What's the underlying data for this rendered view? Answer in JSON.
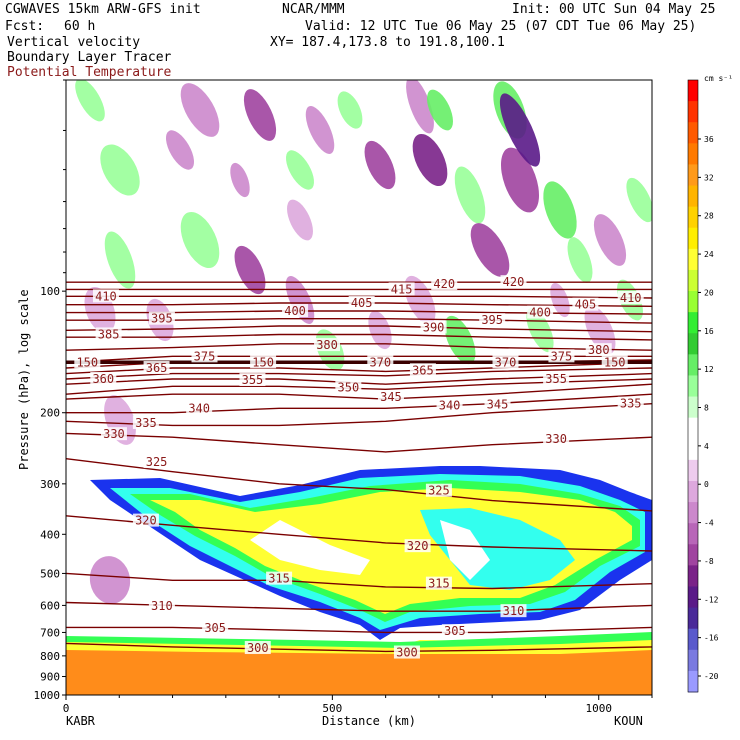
{
  "header": {
    "model": "CGWAVES 15km ARW-GFS init",
    "org": "NCAR/MMM",
    "init": "Init: 00 UTC Sun 04 May 25",
    "fcst_label": "Fcst:",
    "fcst_value": "60 h",
    "valid": "Valid: 12 UTC Tue 06 May 25 (07 CDT Tue 06 May 25)",
    "field1": "Vertical velocity",
    "field2": "Boundary Layer Tracer",
    "field3": "Potential Temperature",
    "xy": "XY= 187.4,173.8 to 191.8,100.1"
  },
  "colors": {
    "theta_contour": "#7a0000",
    "theta_label": "#8b1a1a",
    "tracer_orange": "#ff8c1a",
    "tracer_yellow": "#ffff33",
    "tracer_green": "#33ff55",
    "tracer_cyan": "#33ffee",
    "tracer_blue": "#1a33ee",
    "updraft_green": "#55ee55",
    "downdraft_purple": "#8a2a9a"
  },
  "chart_data": {
    "type": "heatmap",
    "xlabel": "Distance (km)",
    "ylabel": "Pressure (hPa), log scale",
    "x_ticks": [
      "0",
      "500",
      "1000"
    ],
    "xlim": [
      0,
      1100
    ],
    "ylim": [
      1000,
      30
    ],
    "y_scale": "log",
    "y_ticks": [
      "100",
      "200",
      "300",
      "400",
      "500",
      "600",
      "700",
      "800",
      "900",
      "1000"
    ],
    "y_tick_values": [
      100,
      200,
      300,
      400,
      500,
      600,
      700,
      800,
      900,
      1000
    ],
    "endpoints": {
      "left": "KABR",
      "right": "KOUN"
    },
    "colorbar": {
      "unit": "cm s⁻¹",
      "labels": [
        "36",
        "32",
        "28",
        "24",
        "20",
        "16",
        "12",
        "8",
        "4",
        "0",
        "-4",
        "-8",
        "-12",
        "-16",
        "-20"
      ],
      "colors": [
        "#ff0000",
        "#ff3300",
        "#ff5a00",
        "#ff7a00",
        "#ff9a1a",
        "#ffb400",
        "#ffd200",
        "#ffee00",
        "#ffff33",
        "#ccff33",
        "#99ff33",
        "#33ee33",
        "#33cc33",
        "#66ee66",
        "#99ff99",
        "#ccffcc",
        "#ffffff",
        "#ffffff",
        "#eeccee",
        "#dda8dd",
        "#cc88cc",
        "#b866b8",
        "#a044a0",
        "#7a2288",
        "#5a1a88",
        "#4a2a99",
        "#5a5acc",
        "#7a7ae0",
        "#9a9aff"
      ]
    },
    "theta_contours": [
      {
        "label": "300",
        "values": [
          [
            0,
            745
          ],
          [
            200,
            760
          ],
          [
            400,
            770
          ],
          [
            600,
            780
          ],
          [
            800,
            775
          ],
          [
            1100,
            760
          ]
        ]
      },
      {
        "label": "305",
        "values": [
          [
            0,
            680
          ],
          [
            200,
            680
          ],
          [
            400,
            690
          ],
          [
            600,
            700
          ],
          [
            800,
            700
          ],
          [
            1100,
            680
          ]
        ]
      },
      {
        "label": "310",
        "values": [
          [
            0,
            590
          ],
          [
            200,
            600
          ],
          [
            400,
            610
          ],
          [
            600,
            620
          ],
          [
            800,
            620
          ],
          [
            1100,
            600
          ]
        ]
      },
      {
        "label": "315",
        "values": [
          [
            0,
            500
          ],
          [
            200,
            520
          ],
          [
            400,
            520
          ],
          [
            600,
            540
          ],
          [
            800,
            545
          ],
          [
            1100,
            530
          ]
        ]
      },
      {
        "label": "320",
        "values": [
          [
            0,
            360
          ],
          [
            200,
            380
          ],
          [
            400,
            400
          ],
          [
            600,
            420
          ],
          [
            800,
            430
          ],
          [
            1100,
            440
          ]
        ]
      },
      {
        "label": "325",
        "values": [
          [
            0,
            260
          ],
          [
            200,
            280
          ],
          [
            400,
            300
          ],
          [
            600,
            310
          ],
          [
            800,
            330
          ],
          [
            1100,
            350
          ]
        ]
      },
      {
        "label": "330",
        "values": [
          [
            0,
            225
          ],
          [
            200,
            230
          ],
          [
            400,
            240
          ],
          [
            600,
            250
          ],
          [
            800,
            240
          ],
          [
            1100,
            230
          ]
        ]
      },
      {
        "label": "335",
        "values": [
          [
            0,
            210
          ],
          [
            200,
            215
          ],
          [
            400,
            215
          ],
          [
            600,
            210
          ],
          [
            800,
            200
          ],
          [
            1100,
            190
          ]
        ]
      },
      {
        "label": "340",
        "values": [
          [
            0,
            200
          ],
          [
            200,
            200
          ],
          [
            400,
            195
          ],
          [
            600,
            195
          ],
          [
            800,
            190
          ],
          [
            1100,
            180
          ]
        ]
      },
      {
        "label": "345",
        "values": [
          [
            0,
            185
          ],
          [
            200,
            180
          ],
          [
            400,
            180
          ],
          [
            600,
            185
          ],
          [
            800,
            180
          ],
          [
            1100,
            170
          ]
        ]
      },
      {
        "label": "350",
        "values": [
          [
            0,
            180
          ],
          [
            200,
            172
          ],
          [
            400,
            172
          ],
          [
            600,
            175
          ],
          [
            800,
            170
          ],
          [
            1100,
            165
          ]
        ]
      },
      {
        "label": "355",
        "values": [
          [
            0,
            170
          ],
          [
            200,
            165
          ],
          [
            400,
            165
          ],
          [
            600,
            170
          ],
          [
            800,
            165
          ],
          [
            1100,
            160
          ]
        ]
      },
      {
        "label": "360",
        "values": [
          [
            0,
            165
          ],
          [
            200,
            160
          ],
          [
            400,
            160
          ],
          [
            600,
            162
          ],
          [
            800,
            158
          ],
          [
            1100,
            155
          ]
        ]
      },
      {
        "label": "365",
        "values": [
          [
            0,
            160
          ],
          [
            200,
            155
          ],
          [
            400,
            155
          ],
          [
            600,
            158
          ],
          [
            800,
            155
          ],
          [
            1100,
            150
          ]
        ]
      },
      {
        "label": "370",
        "values": [
          [
            0,
            155
          ],
          [
            200,
            150
          ],
          [
            400,
            150
          ],
          [
            600,
            150
          ],
          [
            800,
            150
          ],
          [
            1100,
            148
          ]
        ]
      },
      {
        "label": "375",
        "values": [
          [
            0,
            150
          ],
          [
            200,
            145
          ],
          [
            400,
            145
          ],
          [
            600,
            145
          ],
          [
            800,
            145
          ],
          [
            1100,
            145
          ]
        ]
      },
      {
        "label": "380",
        "values": [
          [
            0,
            140
          ],
          [
            200,
            138
          ],
          [
            400,
            135
          ],
          [
            600,
            135
          ],
          [
            800,
            138
          ],
          [
            1100,
            140
          ]
        ]
      },
      {
        "label": "385",
        "values": [
          [
            0,
            130
          ],
          [
            200,
            130
          ],
          [
            400,
            128
          ],
          [
            600,
            128
          ],
          [
            800,
            130
          ],
          [
            1100,
            132
          ]
        ]
      },
      {
        "label": "390",
        "values": [
          [
            0,
            125
          ],
          [
            200,
            124
          ],
          [
            400,
            122
          ],
          [
            600,
            122
          ],
          [
            800,
            124
          ],
          [
            1100,
            126
          ]
        ]
      },
      {
        "label": "395",
        "values": [
          [
            0,
            118
          ],
          [
            200,
            118
          ],
          [
            400,
            117
          ],
          [
            600,
            117
          ],
          [
            800,
            118
          ],
          [
            1100,
            120
          ]
        ]
      },
      {
        "label": "400",
        "values": [
          [
            0,
            113
          ],
          [
            200,
            113
          ],
          [
            400,
            112
          ],
          [
            600,
            112
          ],
          [
            800,
            113
          ],
          [
            1100,
            114
          ]
        ]
      },
      {
        "label": "405",
        "values": [
          [
            0,
            108
          ],
          [
            200,
            108
          ],
          [
            400,
            107
          ],
          [
            600,
            107
          ],
          [
            800,
            108
          ],
          [
            1100,
            109
          ]
        ]
      },
      {
        "label": "410",
        "values": [
          [
            0,
            103
          ],
          [
            200,
            103
          ],
          [
            400,
            103
          ],
          [
            600,
            103
          ],
          [
            800,
            103
          ],
          [
            1100,
            104
          ]
        ]
      },
      {
        "label": "415",
        "values": [
          [
            0,
            99
          ],
          [
            200,
            99
          ],
          [
            400,
            99
          ],
          [
            600,
            99
          ],
          [
            800,
            99
          ],
          [
            1100,
            99
          ]
        ]
      },
      {
        "label": "420",
        "values": [
          [
            0,
            95
          ],
          [
            200,
            95
          ],
          [
            400,
            95
          ],
          [
            600,
            95
          ],
          [
            800,
            95
          ],
          [
            1100,
            95
          ]
        ]
      }
    ],
    "theta_labels": [
      {
        "text": "410",
        "x": 75,
        "p": 103
      },
      {
        "text": "395",
        "x": 180,
        "p": 117
      },
      {
        "text": "385",
        "x": 80,
        "p": 128
      },
      {
        "text": "400",
        "x": 430,
        "p": 112
      },
      {
        "text": "405",
        "x": 555,
        "p": 107
      },
      {
        "text": "415",
        "x": 630,
        "p": 99
      },
      {
        "text": "420",
        "x": 710,
        "p": 96
      },
      {
        "text": "420",
        "x": 840,
        "p": 95
      },
      {
        "text": "390",
        "x": 690,
        "p": 123
      },
      {
        "text": "395",
        "x": 800,
        "p": 118
      },
      {
        "text": "400",
        "x": 890,
        "p": 113
      },
      {
        "text": "405",
        "x": 975,
        "p": 108
      },
      {
        "text": "410",
        "x": 1060,
        "p": 104
      },
      {
        "text": "375",
        "x": 260,
        "p": 145
      },
      {
        "text": "365",
        "x": 170,
        "p": 155
      },
      {
        "text": "360",
        "x": 70,
        "p": 165
      },
      {
        "text": "380",
        "x": 490,
        "p": 136
      },
      {
        "text": "370",
        "x": 590,
        "p": 150
      },
      {
        "text": "365",
        "x": 670,
        "p": 157
      },
      {
        "text": "370",
        "x": 825,
        "p": 150
      },
      {
        "text": "375",
        "x": 930,
        "p": 145
      },
      {
        "text": "380",
        "x": 1000,
        "p": 140
      },
      {
        "text": "355",
        "x": 350,
        "p": 166
      },
      {
        "text": "350",
        "x": 530,
        "p": 173
      },
      {
        "text": "345",
        "x": 610,
        "p": 183
      },
      {
        "text": "355",
        "x": 920,
        "p": 165
      },
      {
        "text": "340",
        "x": 250,
        "p": 195
      },
      {
        "text": "340",
        "x": 720,
        "p": 192
      },
      {
        "text": "345",
        "x": 810,
        "p": 191
      },
      {
        "text": "335",
        "x": 1060,
        "p": 190
      },
      {
        "text": "335",
        "x": 150,
        "p": 212
      },
      {
        "text": "330",
        "x": 90,
        "p": 226
      },
      {
        "text": "330",
        "x": 920,
        "p": 232
      },
      {
        "text": "325",
        "x": 170,
        "p": 265
      },
      {
        "text": "325",
        "x": 700,
        "p": 312
      },
      {
        "text": "320",
        "x": 150,
        "p": 370
      },
      {
        "text": "320",
        "x": 660,
        "p": 428
      },
      {
        "text": "315",
        "x": 400,
        "p": 515
      },
      {
        "text": "315",
        "x": 700,
        "p": 530
      },
      {
        "text": "310",
        "x": 180,
        "p": 602
      },
      {
        "text": "310",
        "x": 840,
        "p": 620
      },
      {
        "text": "305",
        "x": 280,
        "p": 682
      },
      {
        "text": "305",
        "x": 730,
        "p": 695
      },
      {
        "text": "300",
        "x": 360,
        "p": 765
      },
      {
        "text": "300",
        "x": 640,
        "p": 785
      },
      {
        "text": "150",
        "x": 40,
        "p": 150
      },
      {
        "text": "150",
        "x": 370,
        "p": 150
      },
      {
        "text": "150",
        "x": 1030,
        "p": 150
      }
    ]
  }
}
